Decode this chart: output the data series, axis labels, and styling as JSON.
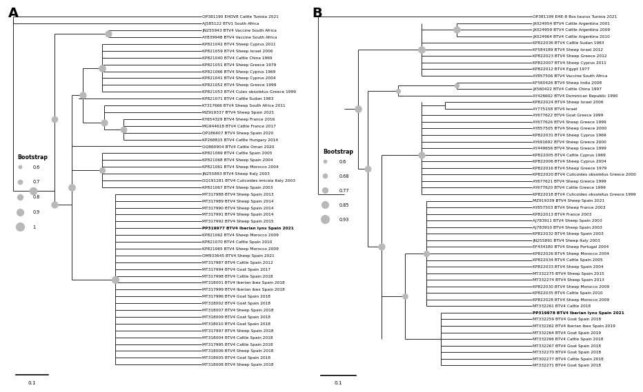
{
  "fig_width": 9.0,
  "fig_height": 6.05,
  "background_color": "#ffffff",
  "line_color": "#000000",
  "line_width": 0.6,
  "label_fontsize": 4.2,
  "circle_color": "#b8b8b8",
  "panel_A": {
    "title": "A",
    "legend_title": "Bootstrap",
    "legend_values": [
      "0.6",
      "0.7",
      "0.8",
      "0.9",
      "1"
    ],
    "legend_sizes": [
      18,
      30,
      45,
      65,
      90
    ],
    "scalebar_label": "0.1",
    "leaves": [
      {
        "label": "OP381190 EHDV8 Cattle Tunisia 2021",
        "bold": false
      },
      {
        "label": "AJ585122 BTV1 South Africa",
        "bold": false
      },
      {
        "label": "JN255943 BTV4 Vaccine South Africa",
        "bold": false
      },
      {
        "label": "AY839948 BTV4 Vaccine South Africa",
        "bold": false
      },
      {
        "label": "KP821042 BTV4 Sheep Cyprus 2011",
        "bold": false
      },
      {
        "label": "KP821059 BTV4 Sheep Israel 2006",
        "bold": false
      },
      {
        "label": "KP821040 BTV4 Cattle China 1969",
        "bold": false
      },
      {
        "label": "KP821051 BTV4 Sheep Greece 1979",
        "bold": false
      },
      {
        "label": "KP821066 BTV4 Sheep Cyprus 1969",
        "bold": false
      },
      {
        "label": "KP821041 BTV4 Sheep Cyprus 2004",
        "bold": false
      },
      {
        "label": "KP821052 BTV4 Sheep Greece 1999",
        "bold": false
      },
      {
        "label": "KP821053 BTV4 Culex obsoletus Greece 1999",
        "bold": false
      },
      {
        "label": "KP821071 BTV4 Cattle Sudan 1983",
        "bold": false
      },
      {
        "label": "KT317666 BTV4 Sheep South Africa 2011",
        "bold": false
      },
      {
        "label": "MZ919337 BTV4 Sheep Spain 2021",
        "bold": false
      },
      {
        "label": "KY654329 BTV4 Sheep France 2016",
        "bold": false
      },
      {
        "label": "MG944618 BTV4 Cattle France 2017",
        "bold": false
      },
      {
        "label": "OP186407 BTV4 Sheep Spain 2020",
        "bold": false
      },
      {
        "label": "KP268815 BTV4 Cattle Hungary 2014",
        "bold": false
      },
      {
        "label": "OQ860904 BTV4 Cattle Oman 2020",
        "bold": false
      },
      {
        "label": "KP821069 BTV4 Cattle Spain 2005",
        "bold": false
      },
      {
        "label": "KP821068 BTV4 Sheep Spain 2004",
        "bold": false
      },
      {
        "label": "KP821061 BTV4 Sheep Morocco 2004",
        "bold": false
      },
      {
        "label": "JN255883 BTV4 Sheep Italy 2003",
        "bold": false
      },
      {
        "label": "DQ191281 BTV4 Culicoides imicola Italy 2003",
        "bold": false
      },
      {
        "label": "KP821067 BTV4 Sheep Spain 2003",
        "bold": false
      },
      {
        "label": "MT317988 BTV4 Sheep Spain 2013",
        "bold": false
      },
      {
        "label": "MT317989 BTV4 Sheep Spain 2014",
        "bold": false
      },
      {
        "label": "MT317990 BTV4 Sheep Spain 2014",
        "bold": false
      },
      {
        "label": "MT317991 BTV4 Sheep Spain 2014",
        "bold": false
      },
      {
        "label": "MT317992 BTV4 Sheep Spain 2015",
        "bold": false
      },
      {
        "label": "PP319977 BTV4 Iberian lynx Spain 2021",
        "bold": true
      },
      {
        "label": "KP821062 BTV4 Sheep Morocco 2009",
        "bold": false
      },
      {
        "label": "KP821070 BTV4 Cattle Spain 2010",
        "bold": false
      },
      {
        "label": "KP821065 BTV4 Sheep Morocco 2009",
        "bold": false
      },
      {
        "label": "OM933645 BTV4 Sheep Spain 2021",
        "bold": false
      },
      {
        "label": "MT317987 BTV4 Cattle Spain 2012",
        "bold": false
      },
      {
        "label": "MT317994 BTV4 Goat Spain 2017",
        "bold": false
      },
      {
        "label": "MT317998 BTV4 Cattle Spain 2018",
        "bold": false
      },
      {
        "label": "MT318001 BTV4 Iberian ibex Spain 2018",
        "bold": false
      },
      {
        "label": "MT317999 BTV4 Iberian ibex Spain 2018",
        "bold": false
      },
      {
        "label": "MT317996 BTV4 Goat Spain 2018",
        "bold": false
      },
      {
        "label": "MT318002 BTV4 Goat Spain 2018",
        "bold": false
      },
      {
        "label": "MT318007 BTV4 Sheep Spain 2018",
        "bold": false
      },
      {
        "label": "MT318009 BTV4 Goat Spain 2018",
        "bold": false
      },
      {
        "label": "MT318010 BTV4 Goat Spain 2018",
        "bold": false
      },
      {
        "label": "MT317997 BTV4 Sheep Spain 2018",
        "bold": false
      },
      {
        "label": "MT318004 BTV4 Cattle Spain 2018",
        "bold": false
      },
      {
        "label": "MT317995 BTV4 Cattle Spain 2018",
        "bold": false
      },
      {
        "label": "MT318006 BTV4 Sheep Spain 2018",
        "bold": false
      },
      {
        "label": "MT318005 BTV4 Goat Spain 2018",
        "bold": false
      },
      {
        "label": "MT318008 BTV4 Sheep Spain 2018",
        "bold": false
      }
    ]
  },
  "panel_B": {
    "title": "B",
    "legend_title": "Bootstrap",
    "legend_values": [
      "0.6",
      "0.68",
      "0.77",
      "0.85",
      "0.93"
    ],
    "legend_sizes": [
      18,
      30,
      45,
      65,
      90
    ],
    "scalebar_label": "0.1",
    "leaves": [
      {
        "label": "OP381199 EHE-8 Bos taurus Tunisia 2021",
        "bold": false
      },
      {
        "label": "JX024954 BTV4 Cattle Argentina 2001",
        "bold": false
      },
      {
        "label": "JX024959 BTV4 Cattle Argentina 2009",
        "bold": false
      },
      {
        "label": "JX024964 BTV4 Cattle Argentina 2010",
        "bold": false
      },
      {
        "label": "KP822036 BTV4 Cattle Sudan 1983",
        "bold": false
      },
      {
        "label": "KF584189 BTV4 Sheep Israel 2012",
        "bold": false
      },
      {
        "label": "KP822023 BTV4 Sheep Greece 2012",
        "bold": false
      },
      {
        "label": "KP822007 BTV4 Sheep Cyprus 2011",
        "bold": false
      },
      {
        "label": "KP822012 BTV4 Egypt 1977",
        "bold": false
      },
      {
        "label": "AY857506 BTV4 Vaccine South Africa",
        "bold": false
      },
      {
        "label": "KF560426 BTV4 Sheep India 2008",
        "bold": false
      },
      {
        "label": "JX560422 BTV4 Cattle China 1997",
        "bold": false
      },
      {
        "label": "AY426602 BTV4 Dominican Republic 1990",
        "bold": false
      },
      {
        "label": "KP822024 BTV4 Sheep Israel 2006",
        "bold": false
      },
      {
        "label": "AY775158 BTV4 Israel",
        "bold": false
      },
      {
        "label": "AY677622 BTV4 Goat Greece 1999",
        "bold": false
      },
      {
        "label": "AY677626 BTV4 Sheep Greece 1999",
        "bold": false
      },
      {
        "label": "AY857505 BTV4 Sheep Greece 2000",
        "bold": false
      },
      {
        "label": "KP822031 BTV4 Sheep Cyprus 1969",
        "bold": false
      },
      {
        "label": "AY691692 BTV4 Sheep Greece 2000",
        "bold": false
      },
      {
        "label": "AY449656 BTV4 Sheep Greece 1999",
        "bold": false
      },
      {
        "label": "KP822005 BTV4 Cattle Cyprus 1969",
        "bold": false
      },
      {
        "label": "KP822006 BTV4 Sheep Cyprus 2004",
        "bold": false
      },
      {
        "label": "KP822016 BTV4 Sheep Greece 1979",
        "bold": false
      },
      {
        "label": "KP822020 BTV4 Culicoides obsoletus Greece 2000",
        "bold": false
      },
      {
        "label": "AY677621 BTV4 Sheep Greece 1999",
        "bold": false
      },
      {
        "label": "AY677620 BTV4 Cattle Greece 1999",
        "bold": false
      },
      {
        "label": "KP822018 BTV4 Culicoides obsoletus Greece 1999",
        "bold": false
      },
      {
        "label": "MZ919339 BTV4 Sheep Spain 2021",
        "bold": false
      },
      {
        "label": "AY857503 BTV4 Sheep France 2003",
        "bold": false
      },
      {
        "label": "KP822013 BTV4 France 2003",
        "bold": false
      },
      {
        "label": "AJ783911 BTV4 Sheep Spain 2003",
        "bold": false
      },
      {
        "label": "AJ783910 BTV4 Sheep Spain 2003",
        "bold": false
      },
      {
        "label": "KP822032 BTV4 Sheep Spain 2003",
        "bold": false
      },
      {
        "label": "JN255891 BTV4 Sheep Italy 2003",
        "bold": false
      },
      {
        "label": "EF434180 BTV4 Sheep Portugal 2004",
        "bold": false
      },
      {
        "label": "KP822026 BTV4 Sheep Morocco 2004",
        "bold": false
      },
      {
        "label": "KP822034 BTV4 Cattle Spain 2005",
        "bold": false
      },
      {
        "label": "KP822033 BTV4 Sheep Spain 2004",
        "bold": false
      },
      {
        "label": "MT332275 BTV4 Sheep Spain 2015",
        "bold": false
      },
      {
        "label": "MT332274 BTV4 Sheep Spain 2013",
        "bold": false
      },
      {
        "label": "KP822030 BTV4 Sheep Morocco 2009",
        "bold": false
      },
      {
        "label": "KP822035 BTV4 Cattle Spain 2010",
        "bold": false
      },
      {
        "label": "KP822028 BTV4 Sheep Morocco 2009",
        "bold": false
      },
      {
        "label": "MT332261 BTV4 Cattle 2018",
        "bold": false
      },
      {
        "label": "PP319978 BTV4 Iberian lynx Spain 2021",
        "bold": true
      },
      {
        "label": "MT332259 BTV4 Goat Spain 2018",
        "bold": false
      },
      {
        "label": "MT332262 BTV4 Iberian ibex Spain 2019",
        "bold": false
      },
      {
        "label": "MT332264 BTV4 Goat Spain 2019",
        "bold": false
      },
      {
        "label": "MT332266 BTV4 Cattle Spain 2018",
        "bold": false
      },
      {
        "label": "MT332267 BTV4 Goat Spain 2018",
        "bold": false
      },
      {
        "label": "MT332270 BTV4 Goat Spain 2018",
        "bold": false
      },
      {
        "label": "MT302277 BTV4 Cattle Spain 2018",
        "bold": false
      },
      {
        "label": "MT332271 BTV4 Goat Spain 2018",
        "bold": false
      }
    ]
  }
}
